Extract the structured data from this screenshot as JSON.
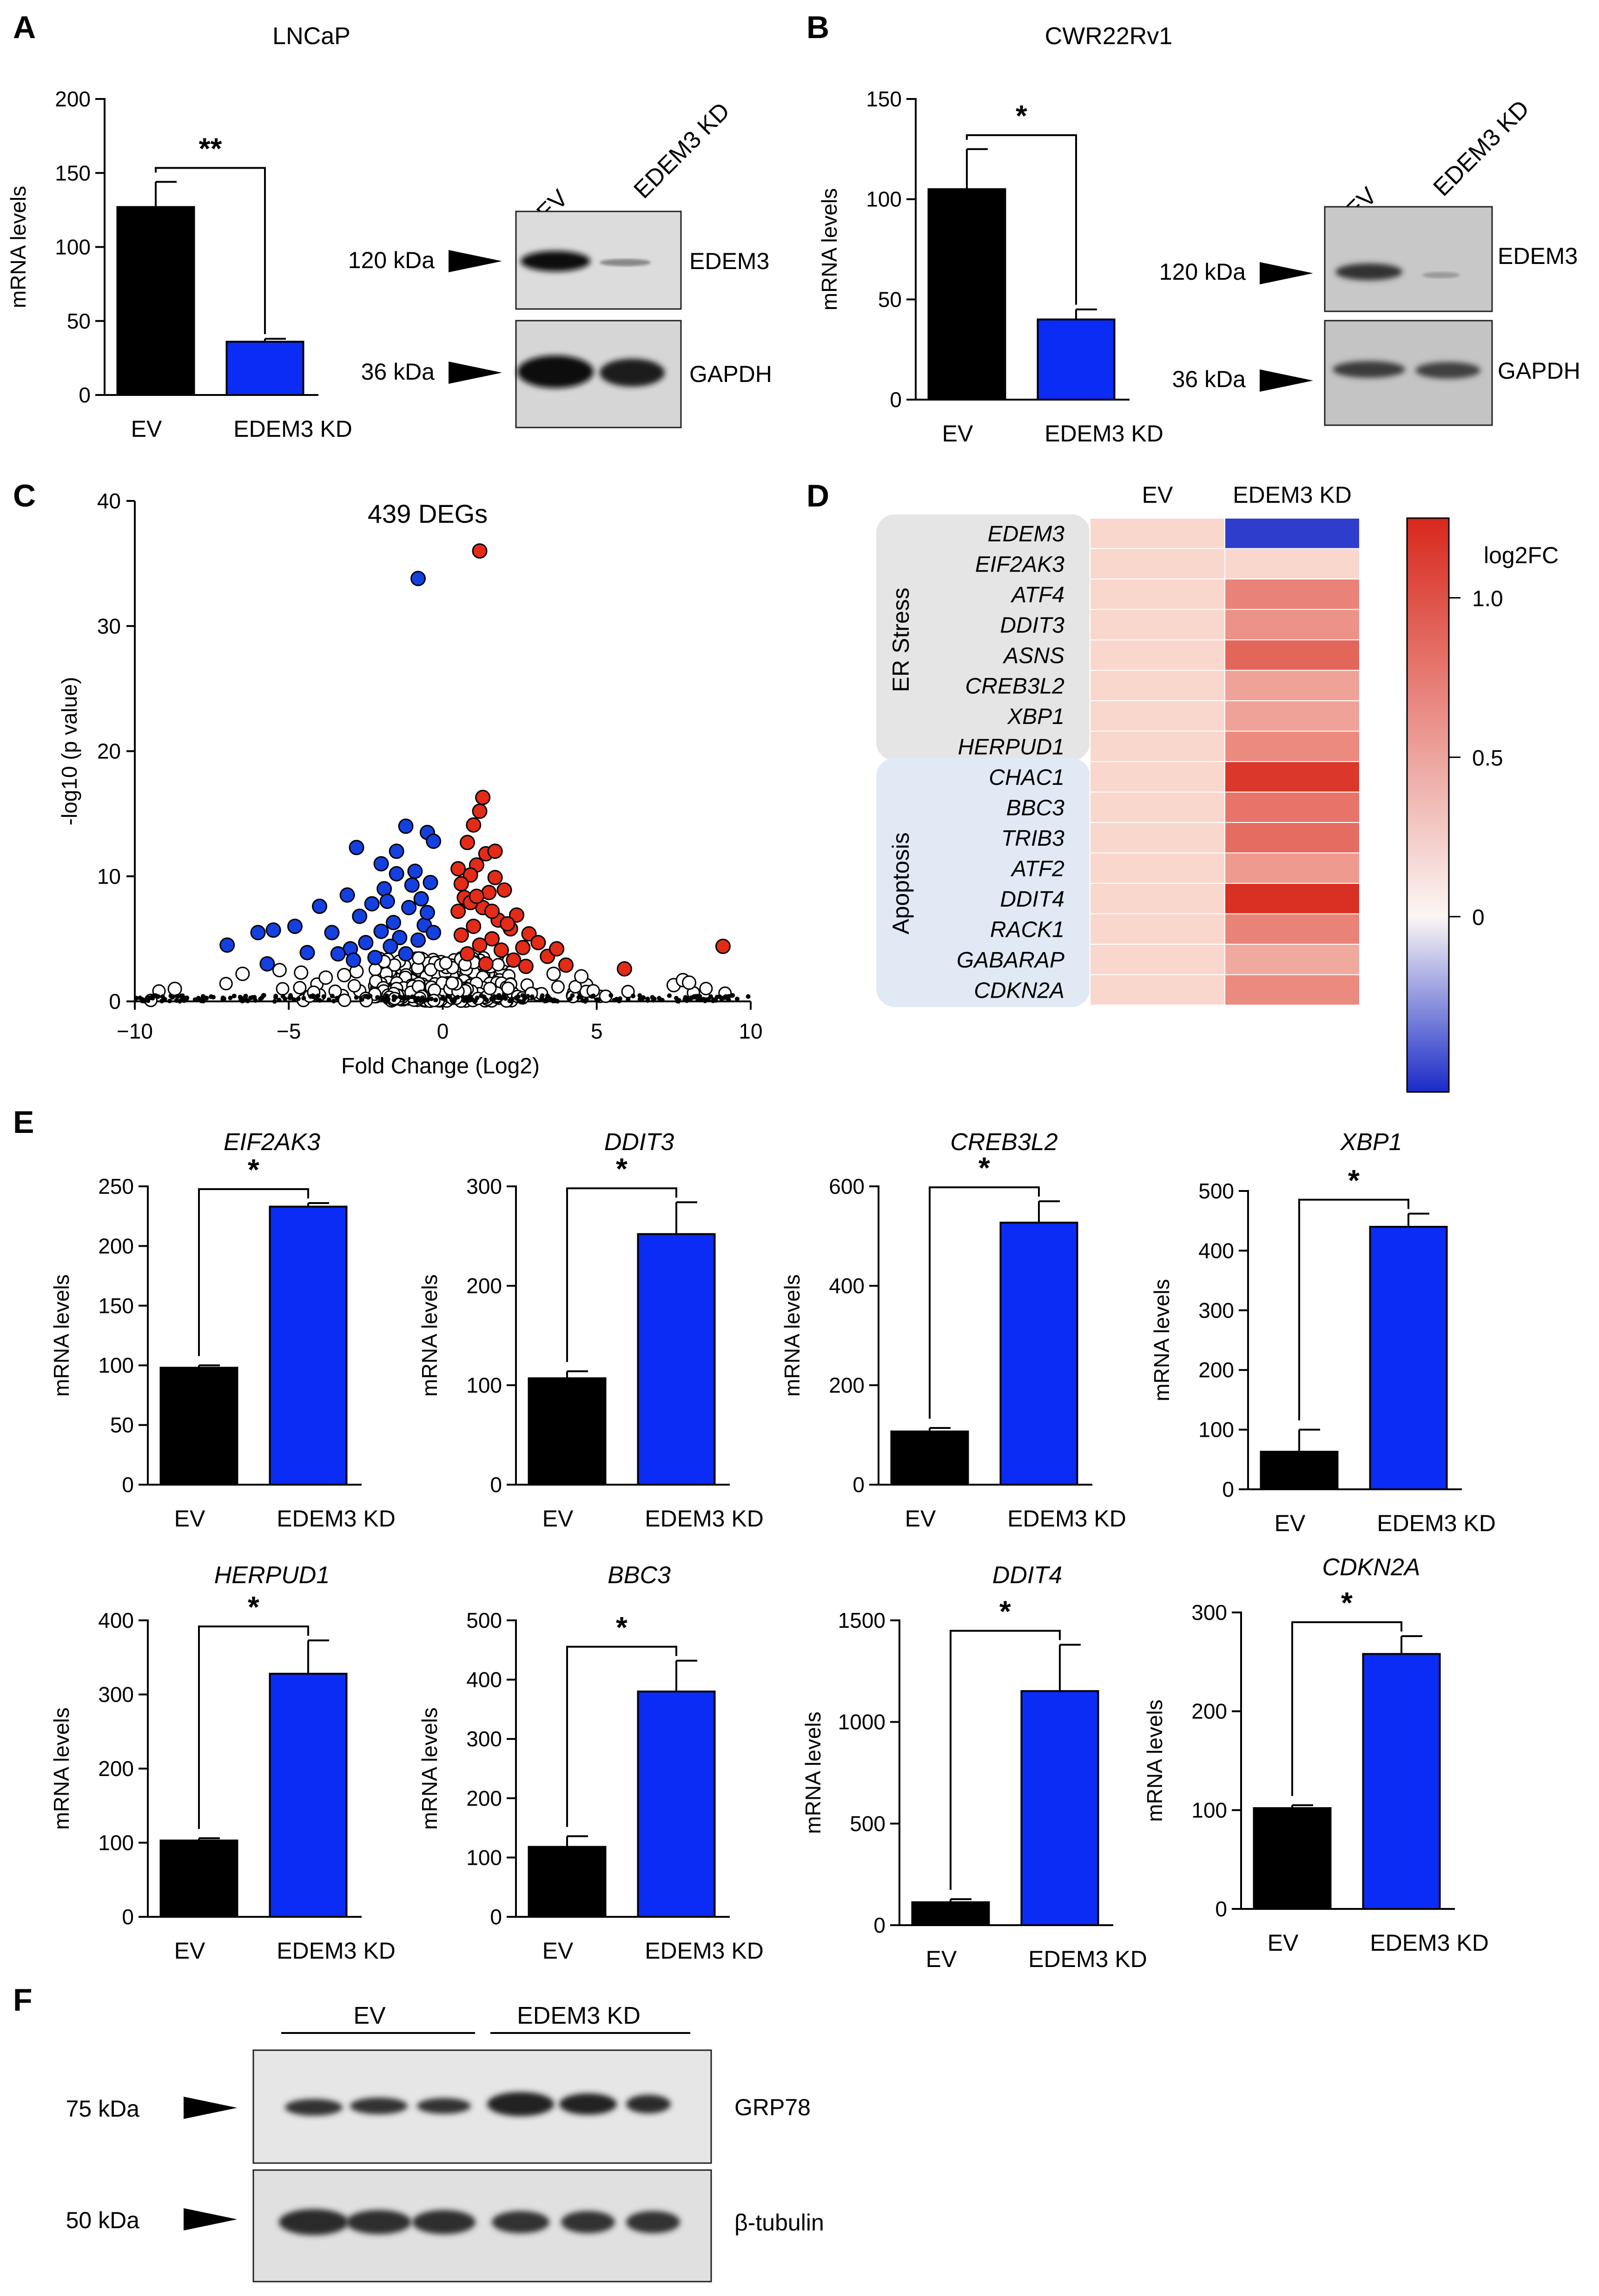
{
  "panel_letters": [
    "A",
    "B",
    "C",
    "D",
    "E",
    "F"
  ],
  "colors": {
    "ev": "#000000",
    "kd": "#0a2cf5",
    "up": "#e32b18",
    "down": "#1440e0",
    "heat_low": "#1a2bc8",
    "heat_high": "#d8281c"
  },
  "chart_data": [
    {
      "id": "A",
      "type": "bar",
      "title": "LNCaP",
      "ylabel": "mRNA levels",
      "categories": [
        "EV",
        "EDEM3 KD"
      ],
      "values": [
        127,
        36
      ],
      "errors": [
        17,
        2
      ],
      "ylim": [
        0,
        200
      ],
      "yticks": [
        0,
        50,
        100,
        150,
        200
      ],
      "significance": "**"
    },
    {
      "id": "B",
      "type": "bar",
      "title": "CWR22Rv1",
      "ylabel": "mRNA levels",
      "categories": [
        "EV",
        "EDEM3 KD"
      ],
      "values": [
        105,
        40
      ],
      "errors": [
        20,
        5
      ],
      "ylim": [
        0,
        150
      ],
      "yticks": [
        0,
        50,
        100,
        150
      ],
      "significance": "*"
    },
    {
      "id": "C",
      "type": "scatter",
      "title": "439 DEGs",
      "xlabel": "Fold Change (Log2)",
      "ylabel": "-log10 (p value)",
      "xlim": [
        -10,
        10
      ],
      "ylim": [
        0,
        40
      ],
      "xticks": [
        -10,
        -5,
        0,
        5,
        10
      ],
      "xtick_labels": [
        "−10",
        "−5",
        "0",
        "5",
        "10"
      ],
      "yticks": [
        0,
        10,
        20,
        30,
        40
      ],
      "down_points": [
        [
          -0.8,
          33.8
        ],
        [
          -1.2,
          14
        ],
        [
          -1.5,
          12
        ],
        [
          -2.8,
          12.3
        ],
        [
          -2.0,
          11.0
        ],
        [
          -0.5,
          13.5
        ],
        [
          -0.3,
          12.8
        ],
        [
          -4.0,
          7.6
        ],
        [
          -3.1,
          8.5
        ],
        [
          -1.9,
          9.0
        ],
        [
          -2.3,
          7.8
        ],
        [
          -2.7,
          6.8
        ],
        [
          -3.6,
          5.5
        ],
        [
          -4.8,
          6.0
        ],
        [
          -5.5,
          5.7
        ],
        [
          -6.0,
          5.5
        ],
        [
          -7.0,
          4.5
        ],
        [
          -1.1,
          7.5
        ],
        [
          -1.6,
          6.3
        ],
        [
          -0.7,
          8.2
        ],
        [
          -0.4,
          9.5
        ],
        [
          -0.9,
          10.4
        ],
        [
          -1.4,
          5.1
        ],
        [
          -2.0,
          5.6
        ],
        [
          -2.5,
          4.7
        ],
        [
          -3.0,
          4.2
        ],
        [
          -1.7,
          4.4
        ],
        [
          -0.6,
          6.1
        ],
        [
          -1.2,
          3.8
        ],
        [
          -0.8,
          4.9
        ],
        [
          -2.2,
          3.5
        ],
        [
          -4.4,
          3.9
        ],
        [
          -5.7,
          3.0
        ],
        [
          -0.5,
          7.1
        ],
        [
          -1.0,
          9.3
        ],
        [
          -1.8,
          8.0
        ],
        [
          -1.5,
          10.2
        ],
        [
          -0.3,
          5.5
        ],
        [
          -2.9,
          3.3
        ],
        [
          -3.4,
          3.8
        ]
      ],
      "up_points": [
        [
          1.2,
          36.0
        ],
        [
          1.3,
          16.3
        ],
        [
          1.2,
          15.2
        ],
        [
          1.0,
          14.1
        ],
        [
          0.8,
          12.7
        ],
        [
          1.4,
          11.8
        ],
        [
          1.1,
          10.9
        ],
        [
          0.9,
          10.1
        ],
        [
          1.7,
          9.9
        ],
        [
          2.0,
          8.9
        ],
        [
          1.5,
          8.7
        ],
        [
          0.7,
          8.3
        ],
        [
          0.5,
          7.2
        ],
        [
          1.3,
          7.5
        ],
        [
          2.4,
          6.9
        ],
        [
          1.8,
          6.5
        ],
        [
          1.0,
          6.0
        ],
        [
          2.8,
          5.4
        ],
        [
          2.2,
          5.8
        ],
        [
          1.6,
          5.0
        ],
        [
          0.6,
          5.3
        ],
        [
          3.1,
          4.7
        ],
        [
          2.6,
          4.3
        ],
        [
          1.9,
          4.1
        ],
        [
          1.2,
          4.5
        ],
        [
          0.8,
          3.8
        ],
        [
          3.4,
          3.6
        ],
        [
          2.3,
          3.3
        ],
        [
          1.4,
          3.0
        ],
        [
          0.6,
          9.4
        ],
        [
          0.9,
          7.9
        ],
        [
          1.6,
          7.2
        ],
        [
          2.1,
          6.2
        ],
        [
          4.0,
          2.9
        ],
        [
          3.7,
          4.2
        ],
        [
          5.9,
          2.6
        ],
        [
          9.1,
          4.4
        ],
        [
          1.1,
          8.4
        ],
        [
          2.7,
          2.8
        ],
        [
          1.7,
          12.0
        ],
        [
          0.5,
          10.6
        ]
      ]
    },
    {
      "id": "D",
      "type": "heatmap",
      "columns": [
        "EV",
        "EDEM3 KD"
      ],
      "colorbar_label": "log2FC",
      "colorbar_ticks": [
        "1.0",
        "0.5",
        "0"
      ],
      "colorbar_tick_values": [
        1.0,
        0.5,
        0
      ],
      "colorbar_range": [
        -0.55,
        1.25
      ],
      "groups": [
        {
          "name": "ER Stress",
          "rows": [
            "EDEM3",
            "EIF2AK3",
            "ATF4",
            "DDIT3",
            "ASNS",
            "CREB3L2",
            "XBP1",
            "HERPUD1"
          ]
        },
        {
          "name": "Apoptosis",
          "rows": [
            "CHAC1",
            "BBC3",
            "TRIB3",
            "ATF2",
            "DDIT4",
            "RACK1",
            "GABARAP",
            "CDKN2A"
          ]
        }
      ],
      "ev_values": [
        0.1,
        0.1,
        0.1,
        0.1,
        0.1,
        0.1,
        0.1,
        0.1,
        0.1,
        0.1,
        0.1,
        0.1,
        0.1,
        0.1,
        0.1,
        0.1
      ],
      "kd_values": [
        -0.5,
        0.1,
        0.65,
        0.55,
        0.85,
        0.45,
        0.45,
        0.6,
        1.15,
        0.75,
        0.8,
        0.5,
        1.2,
        0.65,
        0.4,
        0.6
      ]
    },
    {
      "id": "E1",
      "type": "bar",
      "title": "EIF2AK3",
      "ylabel": "mRNA levels",
      "categories": [
        "EV",
        "EDEM3 KD"
      ],
      "values": [
        98,
        233
      ],
      "errors": [
        2,
        3
      ],
      "ylim": [
        0,
        250
      ],
      "yticks": [
        0,
        50,
        100,
        150,
        200,
        250
      ],
      "significance": "*"
    },
    {
      "id": "E2",
      "type": "bar",
      "title": "DDIT3",
      "ylabel": "mRNA levels",
      "categories": [
        "EV",
        "EDEM3 KD"
      ],
      "values": [
        107,
        252
      ],
      "errors": [
        7,
        32
      ],
      "ylim": [
        0,
        300
      ],
      "yticks": [
        0,
        100,
        200,
        300
      ],
      "significance": "*"
    },
    {
      "id": "E3",
      "type": "bar",
      "title": "CREB3L2",
      "ylabel": "mRNA levels",
      "categories": [
        "EV",
        "EDEM3 KD"
      ],
      "values": [
        107,
        527
      ],
      "errors": [
        7,
        43
      ],
      "ylim": [
        0,
        600
      ],
      "yticks": [
        0,
        200,
        400,
        600
      ],
      "significance": "*"
    },
    {
      "id": "E4",
      "type": "bar",
      "title": "XBP1",
      "ylabel": "mRNA levels",
      "categories": [
        "EV",
        "EDEM3 KD"
      ],
      "values": [
        63,
        440
      ],
      "errors": [
        37,
        22
      ],
      "ylim": [
        0,
        500
      ],
      "yticks": [
        0,
        100,
        200,
        300,
        400,
        500
      ],
      "significance": "*"
    },
    {
      "id": "E5",
      "type": "bar",
      "title": "HERPUD1",
      "ylabel": "mRNA levels",
      "categories": [
        "EV",
        "EDEM3 KD"
      ],
      "values": [
        103,
        328
      ],
      "errors": [
        3,
        45
      ],
      "ylim": [
        0,
        400
      ],
      "yticks": [
        0,
        100,
        200,
        300,
        400
      ],
      "significance": "*"
    },
    {
      "id": "E6",
      "type": "bar",
      "title": "BBC3",
      "ylabel": "mRNA levels",
      "categories": [
        "EV",
        "EDEM3 KD"
      ],
      "values": [
        118,
        380
      ],
      "errors": [
        18,
        52
      ],
      "ylim": [
        0,
        500
      ],
      "yticks": [
        0,
        100,
        200,
        300,
        400,
        500
      ],
      "significance": "*"
    },
    {
      "id": "E7",
      "type": "bar",
      "title": "DDIT4",
      "ylabel": "mRNA levels",
      "categories": [
        "EV",
        "EDEM3 KD"
      ],
      "values": [
        113,
        1152
      ],
      "errors": [
        15,
        228
      ],
      "ylim": [
        0,
        1500
      ],
      "yticks": [
        0,
        500,
        1000,
        1500
      ],
      "significance": "*"
    },
    {
      "id": "E8",
      "type": "bar",
      "title": "CDKN2A",
      "ylabel": "mRNA levels",
      "categories": [
        "EV",
        "EDEM3 KD"
      ],
      "values": [
        102,
        258
      ],
      "errors": [
        3,
        18
      ],
      "ylim": [
        0,
        300
      ],
      "yticks": [
        0,
        100,
        200,
        300
      ],
      "significance": "*"
    }
  ],
  "westerns": {
    "A": {
      "lanes": [
        "EV",
        "EDEM3 KD"
      ],
      "bands": [
        {
          "size": "120 kDa",
          "name": "EDEM3"
        },
        {
          "size": "36 kDa",
          "name": "GAPDH"
        }
      ]
    },
    "B": {
      "lanes": [
        "EV",
        "EDEM3 KD"
      ],
      "bands": [
        {
          "size": "120 kDa",
          "name": "EDEM3"
        },
        {
          "size": "36 kDa",
          "name": "GAPDH"
        }
      ]
    },
    "F": {
      "groups": [
        "EV",
        "EDEM3 KD"
      ],
      "bands": [
        {
          "size": "75 kDa",
          "name": "GRP78"
        },
        {
          "size": "50 kDa",
          "name": "β-tubulin"
        }
      ]
    }
  }
}
